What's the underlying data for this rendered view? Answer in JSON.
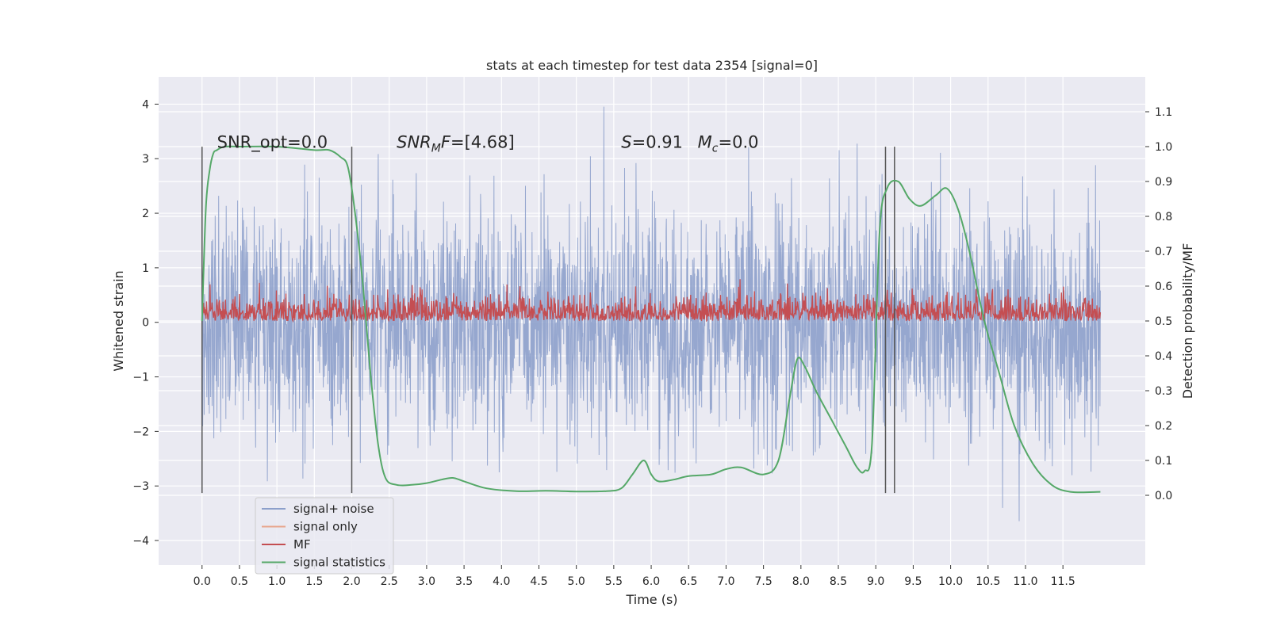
{
  "chart_data": {
    "type": "line",
    "title": "stats at each timestep for test data 2354 [signal=0]",
    "xlabel": "Time (s)",
    "ylabel": "Whitened strain",
    "y2label": "Detection probability/MF",
    "xlim": [
      -0.58,
      12.6
    ],
    "ylim": [
      -4.45,
      4.5
    ],
    "y2lim": [
      -0.2,
      1.2
    ],
    "xticks": [
      0.0,
      0.5,
      1.0,
      1.5,
      2.0,
      2.5,
      3.0,
      3.5,
      4.0,
      4.5,
      5.0,
      5.5,
      6.0,
      6.5,
      7.0,
      7.5,
      8.0,
      8.5,
      9.0,
      9.5,
      10.0,
      10.5,
      11.0,
      11.5
    ],
    "xtick_labels": [
      "0.0",
      "0.5",
      "1.0",
      "1.5",
      "2.0",
      "2.5",
      "3.0",
      "3.5",
      "4.0",
      "4.5",
      "5.0",
      "5.5",
      "6.0",
      "6.5",
      "7.0",
      "7.5",
      "8.0",
      "8.5",
      "9.0",
      "9.5",
      "10.0",
      "10.5",
      "11.0",
      "11.5"
    ],
    "yticks": [
      4,
      3,
      2,
      1,
      0,
      -1,
      -2,
      -3,
      -4
    ],
    "ytick_labels": [
      "4",
      "3",
      "2",
      "1",
      "0",
      "−1",
      "−2",
      "−3",
      "−4"
    ],
    "y2ticks": [
      1.1,
      1.0,
      0.9,
      0.8,
      0.7,
      0.6,
      0.5,
      0.4,
      0.3,
      0.2,
      0.1,
      0.0
    ],
    "y2tick_labels": [
      "1.1",
      "1.0",
      "0.9",
      "0.8",
      "0.7",
      "0.6",
      "0.5",
      "0.4",
      "0.3",
      "0.2",
      "0.1",
      "0.0"
    ],
    "grid": true,
    "legend_position": "lower-left",
    "series": [
      {
        "name": "signal+ noise",
        "axis": "left",
        "color": "#8da0cb",
        "x_range": [
          0.0,
          12.0
        ],
        "typical_range": [
          -2.0,
          2.0
        ],
        "extreme_range": [
          -3.9,
          4.1
        ]
      },
      {
        "name": "signal only",
        "axis": "left",
        "color": "#e8a58c"
      },
      {
        "name": "MF",
        "axis": "right",
        "color": "#c44e52",
        "x_range": [
          0.0,
          12.0
        ],
        "typical_range": [
          0.5,
          0.58
        ],
        "extreme_range": [
          0.5,
          0.66
        ]
      },
      {
        "name": "signal statistics",
        "axis": "right",
        "color": "#55a868",
        "x": [
          0.0,
          0.05,
          0.1,
          0.15,
          0.2,
          0.3,
          0.5,
          1.0,
          1.5,
          1.7,
          1.85,
          1.95,
          2.05,
          2.15,
          2.25,
          2.35,
          2.45,
          2.6,
          2.8,
          3.0,
          3.2,
          3.35,
          3.5,
          3.8,
          4.2,
          4.6,
          5.0,
          5.4,
          5.6,
          5.75,
          5.9,
          6.0,
          6.1,
          6.3,
          6.5,
          6.8,
          7.0,
          7.2,
          7.5,
          7.7,
          7.85,
          7.95,
          8.05,
          8.2,
          8.4,
          8.6,
          8.75,
          8.85,
          8.95,
          9.05,
          9.15,
          9.3,
          9.45,
          9.6,
          9.8,
          9.95,
          10.1,
          10.25,
          10.45,
          10.65,
          10.85,
          11.1,
          11.35,
          11.6,
          12.0
        ],
        "y": [
          0.5,
          0.82,
          0.93,
          0.98,
          0.99,
          1.0,
          1.0,
          1.0,
          0.99,
          0.99,
          0.97,
          0.94,
          0.8,
          0.6,
          0.35,
          0.15,
          0.05,
          0.03,
          0.03,
          0.035,
          0.045,
          0.05,
          0.04,
          0.02,
          0.012,
          0.013,
          0.011,
          0.012,
          0.02,
          0.06,
          0.1,
          0.06,
          0.04,
          0.045,
          0.055,
          0.06,
          0.075,
          0.08,
          0.06,
          0.1,
          0.28,
          0.39,
          0.37,
          0.3,
          0.22,
          0.14,
          0.08,
          0.07,
          0.15,
          0.75,
          0.88,
          0.9,
          0.85,
          0.83,
          0.86,
          0.88,
          0.82,
          0.7,
          0.5,
          0.35,
          0.2,
          0.09,
          0.03,
          0.01,
          0.01
        ]
      }
    ],
    "vertical_lines": [
      {
        "x": 0.0,
        "ymin": -3.13,
        "ymax": 3.22,
        "color": "#555555"
      },
      {
        "x": 2.0,
        "ymin": -3.13,
        "ymax": 3.22,
        "color": "#555555"
      },
      {
        "x": 9.13,
        "ymin": -3.13,
        "ymax": 3.22,
        "color": "#555555"
      },
      {
        "x": 9.25,
        "ymin": -3.13,
        "ymax": 3.22,
        "color": "#555555"
      }
    ],
    "annotations": [
      {
        "text": "SNR_opt=0.0",
        "x": 0.2,
        "y": 3.3
      },
      {
        "text": "SNR",
        "sub": "M",
        "tail": "F=[4.68]",
        "italic": true,
        "x": 2.6,
        "y": 3.3
      },
      {
        "text": "S=0.91   M",
        "sub": "c",
        "tail": "=0.0",
        "italic_letters": true,
        "x": 5.6,
        "y": 3.3
      }
    ]
  }
}
